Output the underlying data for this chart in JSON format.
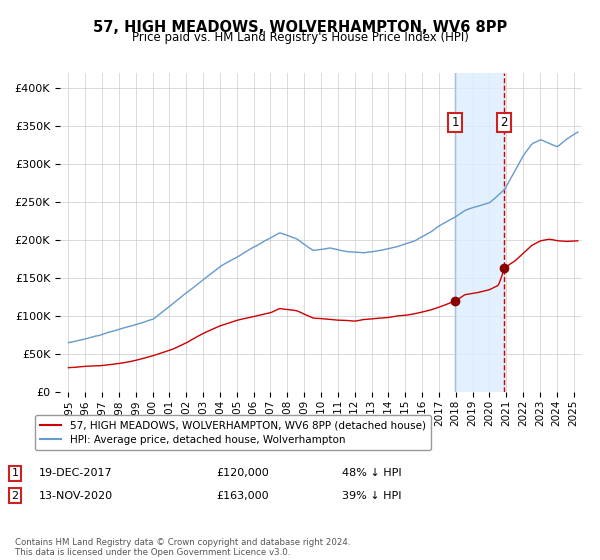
{
  "title": "57, HIGH MEADOWS, WOLVERHAMPTON, WV6 8PP",
  "subtitle": "Price paid vs. HM Land Registry's House Price Index (HPI)",
  "legend1": "57, HIGH MEADOWS, WOLVERHAMPTON, WV6 8PP (detached house)",
  "legend2": "HPI: Average price, detached house, Wolverhampton",
  "footnote": "Contains HM Land Registry data © Crown copyright and database right 2024.\nThis data is licensed under the Open Government Licence v3.0.",
  "transaction1_date": "19-DEC-2017",
  "transaction1_price": "£120,000",
  "transaction1_hpi": "48% ↓ HPI",
  "transaction1_year": 2017.96,
  "transaction1_value": 120000,
  "transaction2_date": "13-NOV-2020",
  "transaction2_price": "£163,000",
  "transaction2_hpi": "39% ↓ HPI",
  "transaction2_year": 2020.87,
  "transaction2_value": 163000,
  "hpi_color": "#6699cc",
  "property_color": "#cc0000",
  "marker_color": "#880000",
  "vline1_color": "#aabbdd",
  "vline2_color": "#cc0000",
  "shade_color": "#ddeeff",
  "grid_color": "#cccccc",
  "ylim_max": 420000,
  "yticks": [
    0,
    50000,
    100000,
    150000,
    200000,
    250000,
    300000,
    350000,
    400000
  ]
}
